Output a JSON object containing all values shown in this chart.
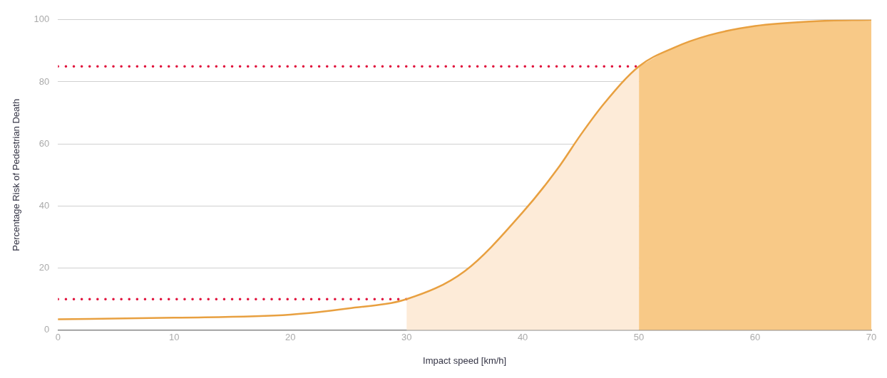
{
  "chart_data": {
    "type": "line",
    "xlabel": "Impact speed [km/h]",
    "ylabel": "Percentage Risk of Pedestrian Death",
    "xlim": [
      0,
      70
    ],
    "xticks": [
      0,
      10,
      20,
      30,
      40,
      50,
      60,
      70
    ],
    "ylim": [
      0,
      100
    ],
    "yticks": [
      0,
      20,
      40,
      60,
      80,
      100
    ],
    "grid": "y",
    "marker": "none",
    "series": [
      {
        "type": "area",
        "color": "#fdebd8",
        "x": [
          30,
          35,
          40,
          43,
          45,
          47,
          50
        ],
        "values": [
          10,
          19,
          38,
          52,
          63,
          73,
          85
        ]
      },
      {
        "type": "area",
        "color": "#f8c987",
        "x": [
          50,
          53,
          56,
          60,
          65,
          70
        ],
        "values": [
          85,
          91,
          95,
          98,
          99.5,
          100
        ]
      },
      {
        "type": "line",
        "color": "#e8a040",
        "line_style": "solid",
        "x": [
          0,
          10,
          20,
          25,
          30,
          35,
          40,
          43,
          45,
          47,
          50,
          53,
          56,
          60,
          65,
          70
        ],
        "values": [
          3.5,
          4,
          5,
          7,
          10,
          19,
          38,
          52,
          63,
          73,
          85,
          91,
          95,
          98,
          99.5,
          100
        ]
      },
      {
        "type": "line",
        "color": "#e0103a",
        "line_style": "dotted",
        "x": [
          0,
          30
        ],
        "values": [
          10,
          10
        ]
      },
      {
        "type": "line",
        "color": "#e0103a",
        "line_style": "dotted",
        "x": [
          0,
          50
        ],
        "values": [
          85,
          85
        ]
      }
    ]
  }
}
